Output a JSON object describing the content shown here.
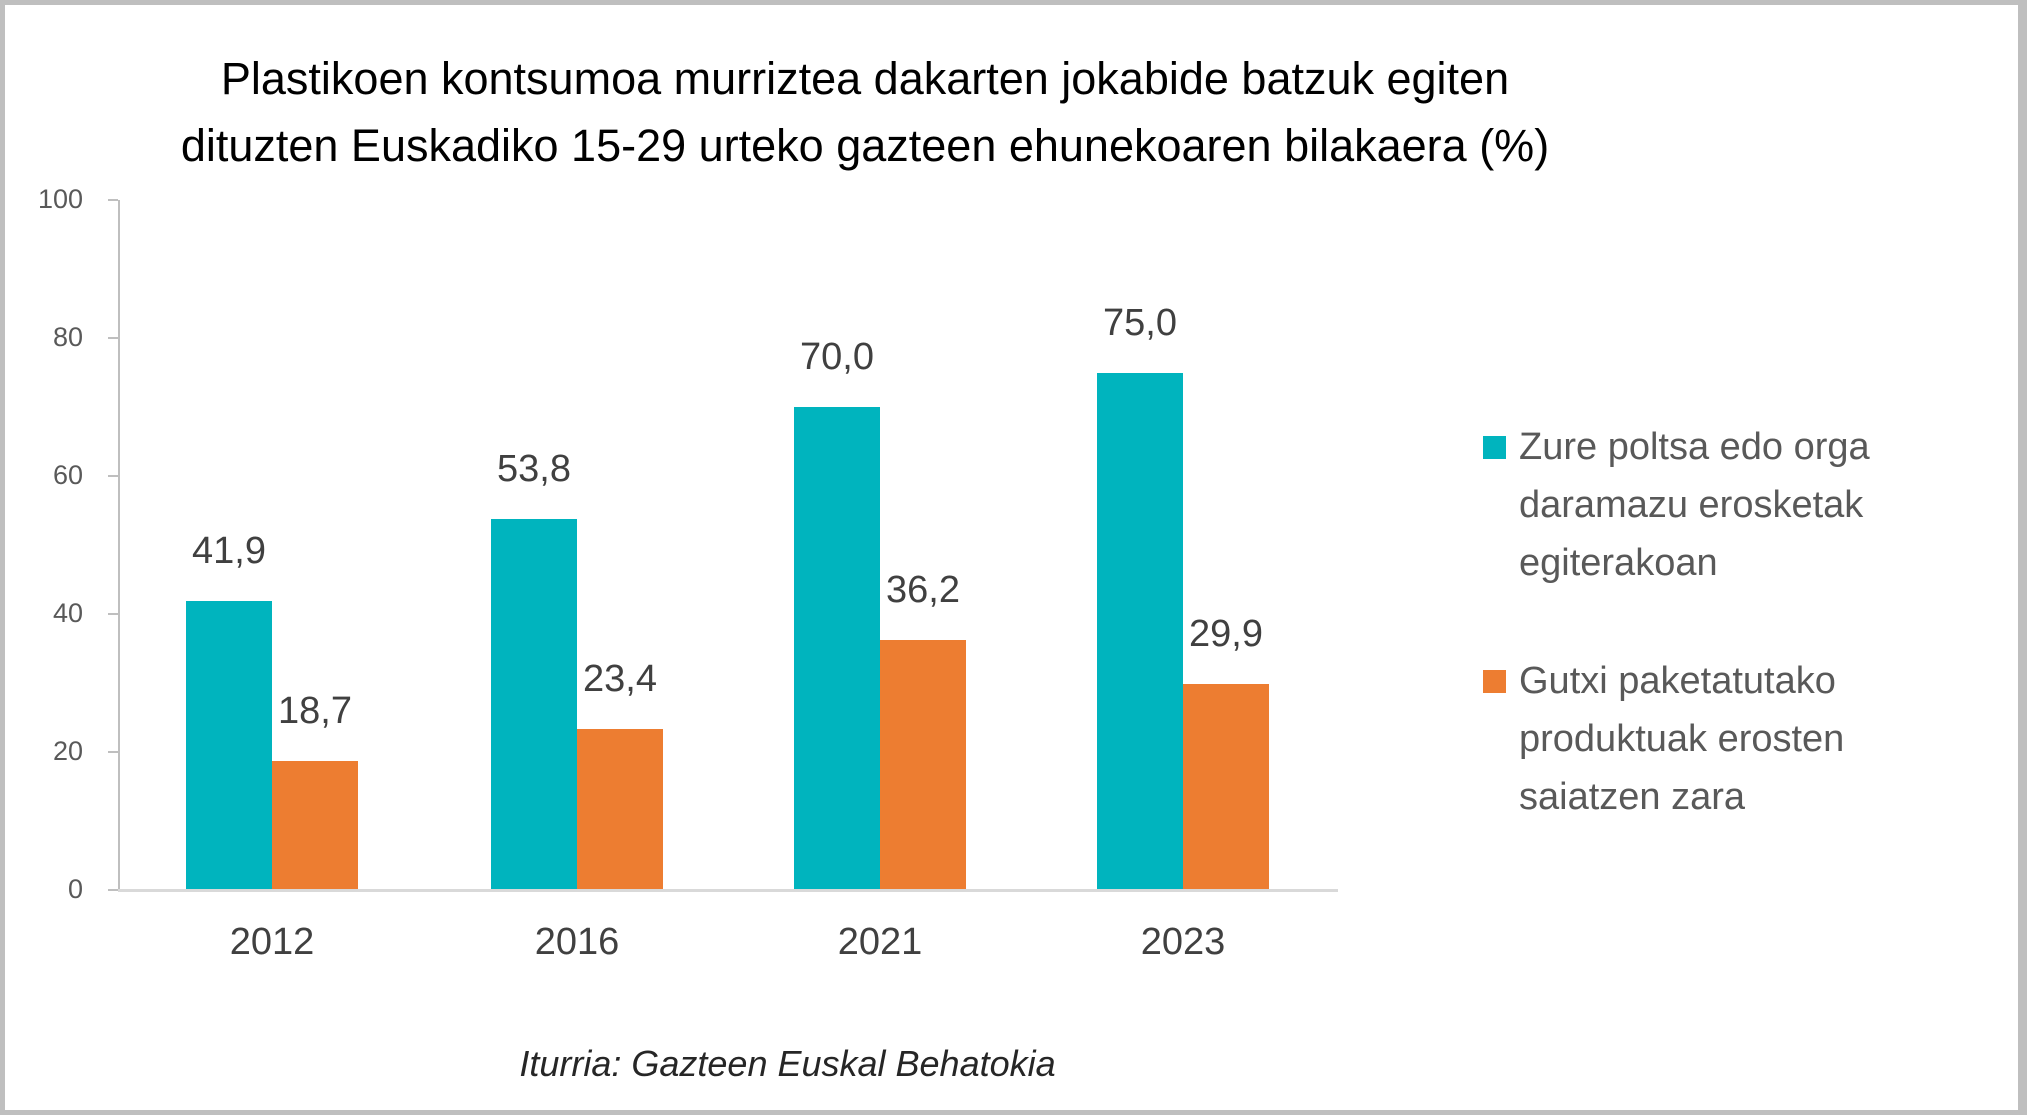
{
  "title": {
    "line1": "Plastikoen kontsumoa murriztea dakarten jokabide batzuk egiten",
    "line2": "dituzten Euskadiko 15-29 urteko gazteen ehunekoaren bilakaera (%)"
  },
  "source": "Iturria: Gazteen Euskal Behatokia",
  "colors": {
    "series0": "#00b4be",
    "series1": "#ed7d31",
    "axis": "#bfbfbf",
    "frame": "#bfbfbf"
  },
  "legend": {
    "items": [
      {
        "lines": [
          "Zure poltsa edo orga",
          "daramazu erosketak",
          "egiterakoan"
        ],
        "color": "#00b4be"
      },
      {
        "lines": [
          "Gutxi paketatutako",
          "produktuak erosten",
          "saiatzen zara"
        ],
        "color": "#ed7d31"
      }
    ]
  },
  "chart_data": {
    "type": "bar",
    "title": "Plastikoen kontsumoa murriztea dakarten jokabide batzuk egiten dituzten Euskadiko 15-29 urteko gazteen ehunekoaren bilakaera (%)",
    "categories": [
      "2012",
      "2016",
      "2021",
      "2023"
    ],
    "series": [
      {
        "name": "Zure poltsa edo orga daramazu erosketak egiterakoan",
        "values": [
          41.9,
          53.8,
          70.0,
          75.0
        ],
        "labels": [
          "41,9",
          "53,8",
          "70,0",
          "75,0"
        ],
        "color": "#00b4be"
      },
      {
        "name": "Gutxi paketatutako produktuak erosten saiatzen zara",
        "values": [
          18.7,
          23.4,
          36.2,
          29.9
        ],
        "labels": [
          "18,7",
          "23,4",
          "36,2",
          "29,9"
        ],
        "color": "#ed7d31"
      }
    ],
    "xlabel": "",
    "ylabel": "",
    "ylim": [
      0,
      100
    ],
    "yticks": [
      0,
      20,
      40,
      60,
      80,
      100
    ],
    "ytick_labels": [
      "0",
      "20",
      "40",
      "60",
      "80",
      "100"
    ],
    "grid": false,
    "legend_position": "right",
    "annotations": [
      "Iturria: Gazteen Euskal Behatokia"
    ]
  }
}
